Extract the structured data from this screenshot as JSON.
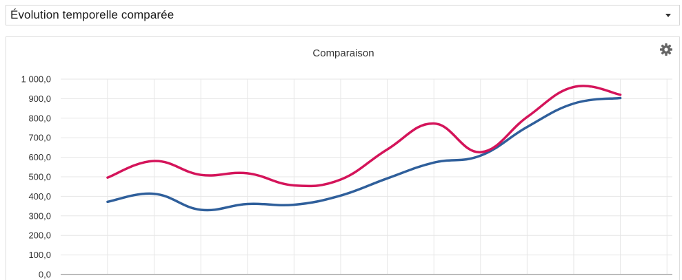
{
  "selector": {
    "label": "Évolution temporelle comparée"
  },
  "icons": {
    "dropdown": "caret-down-icon",
    "settings": "gear-icon"
  },
  "colors": {
    "series_blue": "#2f5f9b",
    "series_red": "#d4145a",
    "grid": "#e6e6e6",
    "axis": "#bbbbbb"
  },
  "chart_data": {
    "type": "line",
    "title": "Comparaison",
    "xlabel": "",
    "ylabel": "",
    "ylim": [
      0,
      1000
    ],
    "yticks": [
      "1 000,0",
      "900,0",
      "800,0",
      "700,0",
      "600,0",
      "500,0",
      "400,0",
      "300,0",
      "200,0",
      "100,0",
      "0,0"
    ],
    "x": [
      1,
      2,
      3,
      4,
      5,
      6,
      7,
      8,
      9,
      10,
      11,
      12
    ],
    "grid": true,
    "legend": "none",
    "series": [
      {
        "color": "#2f5f9b",
        "values": [
          372,
          413,
          331,
          361,
          357,
          404,
          492,
          573,
          608,
          755,
          875,
          903
        ]
      },
      {
        "color": "#d4145a",
        "values": [
          496,
          581,
          510,
          518,
          456,
          486,
          640,
          773,
          626,
          806,
          960,
          920
        ]
      }
    ]
  }
}
